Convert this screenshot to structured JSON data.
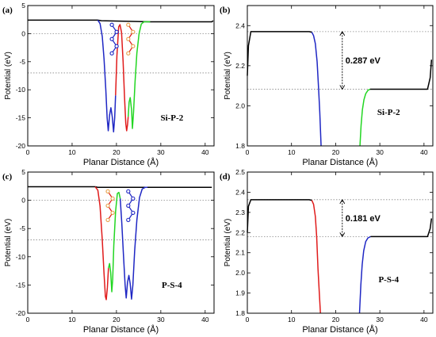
{
  "colors": {
    "black": "#000000",
    "blue": "#1f27c4",
    "red": "#e01b1b",
    "green": "#22d622",
    "orange": "#e8a04a"
  },
  "chart_data": [
    {
      "id": "a",
      "type": "line",
      "panel_label": "(a)",
      "annotation": "Si-P-2",
      "xlabel": "Planar Distance (Å)",
      "ylabel": "Potential (eV)",
      "xlim": [
        0,
        42
      ],
      "ylim": [
        -20,
        5
      ],
      "xticks": [
        0,
        10,
        20,
        30,
        40
      ],
      "yticks": [
        5,
        0,
        -5,
        -10,
        -15,
        -20
      ],
      "dotted_hlines": [
        0,
        -7.0
      ],
      "x_icon_guides": [
        19.5,
        23.2
      ],
      "series": [
        {
          "color": "#000000",
          "points": [
            [
              0,
              2.4
            ],
            [
              15.8,
              2.4
            ],
            [
              16.6,
              2.3
            ],
            [
              27.6,
              2.1
            ],
            [
              41.5,
              2.1
            ],
            [
              41.8,
              2.3
            ]
          ]
        },
        {
          "color": "#1f27c4",
          "points": [
            [
              15.8,
              2.4
            ],
            [
              16.3,
              1.8
            ],
            [
              16.8,
              -0.5
            ],
            [
              17.2,
              -4.5
            ],
            [
              17.6,
              -10
            ],
            [
              17.9,
              -15
            ],
            [
              18.15,
              -17.3
            ],
            [
              18.45,
              -14.5
            ],
            [
              18.75,
              -13.2
            ],
            [
              19.05,
              -14.8
            ],
            [
              19.35,
              -17.5
            ],
            [
              19.6,
              -15
            ],
            [
              19.8,
              -11
            ]
          ]
        },
        {
          "color": "#e01b1b",
          "points": [
            [
              19.8,
              -11
            ],
            [
              20.1,
              -4
            ],
            [
              20.5,
              1.2
            ],
            [
              20.8,
              1.6
            ],
            [
              21.15,
              0.2
            ],
            [
              21.5,
              -5
            ],
            [
              21.8,
              -11
            ],
            [
              22.1,
              -16
            ],
            [
              22.3,
              -17.3
            ],
            [
              22.5,
              -16.2
            ],
            [
              22.65,
              -14.8
            ]
          ]
        },
        {
          "color": "#22d622",
          "points": [
            [
              22.65,
              -14.8
            ],
            [
              22.85,
              -12.2
            ],
            [
              23.1,
              -11.4
            ],
            [
              23.4,
              -13.5
            ],
            [
              23.6,
              -16.9
            ],
            [
              23.85,
              -14
            ],
            [
              24.2,
              -8.5
            ],
            [
              24.6,
              -3.5
            ],
            [
              25.1,
              0
            ],
            [
              25.6,
              1.7
            ],
            [
              26.2,
              2.1
            ],
            [
              27.6,
              2.1
            ]
          ]
        }
      ]
    },
    {
      "id": "b",
      "type": "line",
      "panel_label": "(b)",
      "annotation": "Si-P-2",
      "delta_label": "0.287 eV",
      "xlabel": "Planar Distance (Å)",
      "ylabel": "Potential (eV)",
      "xlim": [
        0,
        42
      ],
      "ylim": [
        1.8,
        2.5
      ],
      "xticks": [
        0,
        10,
        20,
        30,
        40
      ],
      "yticks": [
        1.8,
        2.0,
        2.2,
        2.4
      ],
      "ytick_labels": [
        "1.8",
        "2.0",
        "2.2",
        "2.4"
      ],
      "dotted_hlines": [
        2.37,
        2.083
      ],
      "arrow_x": 21.5,
      "series": [
        {
          "color": "#000000",
          "points": [
            [
              0,
              2.15
            ],
            [
              0.25,
              2.3
            ],
            [
              0.8,
              2.37
            ],
            [
              14,
              2.37
            ],
            [
              14.6,
              2.367
            ]
          ]
        },
        {
          "color": "#1f27c4",
          "points": [
            [
              14.6,
              2.367
            ],
            [
              15.0,
              2.35
            ],
            [
              15.4,
              2.31
            ],
            [
              15.8,
              2.22
            ],
            [
              16.1,
              2.1
            ],
            [
              16.4,
              1.97
            ],
            [
              16.7,
              1.8
            ]
          ]
        },
        {
          "color": "#22d622",
          "points": [
            [
              25.5,
              1.8
            ],
            [
              25.75,
              1.9
            ],
            [
              26.05,
              1.98
            ],
            [
              26.4,
              2.03
            ],
            [
              26.8,
              2.06
            ],
            [
              27.3,
              2.077
            ],
            [
              27.8,
              2.083
            ]
          ]
        },
        {
          "color": "#000000",
          "points": [
            [
              27.8,
              2.083
            ],
            [
              40.8,
              2.083
            ],
            [
              41.4,
              2.14
            ],
            [
              41.7,
              2.23
            ]
          ]
        }
      ]
    },
    {
      "id": "c",
      "type": "line",
      "panel_label": "(c)",
      "annotation": "P-S-4",
      "xlabel": "Planar Distance (Å)",
      "ylabel": "Potential (eV)",
      "xlim": [
        0,
        42
      ],
      "ylim": [
        -20,
        5
      ],
      "xticks": [
        0,
        10,
        20,
        30,
        40
      ],
      "yticks": [
        5,
        0,
        -5,
        -10,
        -15,
        -20
      ],
      "dotted_hlines": [
        0,
        -7.0
      ],
      "x_icon_guides": [
        18.6,
        23.2
      ],
      "series": [
        {
          "color": "#000000",
          "points": [
            [
              0,
              2.4
            ],
            [
              15.2,
              2.4
            ],
            [
              15.8,
              2.3
            ],
            [
              27.0,
              2.3
            ],
            [
              41.5,
              2.3
            ]
          ]
        },
        {
          "color": "#e01b1b",
          "points": [
            [
              15.2,
              2.4
            ],
            [
              15.8,
              1.8
            ],
            [
              16.3,
              -1
            ],
            [
              16.8,
              -7
            ],
            [
              17.2,
              -13
            ],
            [
              17.5,
              -17
            ],
            [
              17.7,
              -17.6
            ],
            [
              17.95,
              -15.5
            ],
            [
              18.2,
              -12
            ]
          ]
        },
        {
          "color": "#22d622",
          "points": [
            [
              18.2,
              -12
            ],
            [
              18.45,
              -11.2
            ],
            [
              18.7,
              -12.8
            ],
            [
              18.95,
              -16.2
            ],
            [
              19.15,
              -14
            ],
            [
              19.4,
              -8
            ],
            [
              19.8,
              -2
            ],
            [
              20.2,
              1.2
            ],
            [
              20.55,
              1.4
            ],
            [
              20.85,
              0.3
            ]
          ]
        },
        {
          "color": "#1f27c4",
          "points": [
            [
              20.85,
              0.3
            ],
            [
              21.2,
              -4
            ],
            [
              21.6,
              -10
            ],
            [
              21.95,
              -15
            ],
            [
              22.2,
              -17.3
            ],
            [
              22.5,
              -14.5
            ],
            [
              22.8,
              -13.3
            ],
            [
              23.1,
              -14.8
            ],
            [
              23.4,
              -17.5
            ],
            [
              23.7,
              -15
            ],
            [
              24.1,
              -9
            ],
            [
              24.6,
              -3.5
            ],
            [
              25.2,
              0.5
            ],
            [
              25.8,
              2.0
            ],
            [
              26.5,
              2.3
            ],
            [
              27.0,
              2.3
            ]
          ]
        }
      ]
    },
    {
      "id": "d",
      "type": "line",
      "panel_label": "(d)",
      "annotation": "P-S-4",
      "delta_label": "0.181 eV",
      "xlabel": "Planar Distance (Å)",
      "ylabel": "Potential (eV)",
      "xlim": [
        0,
        42
      ],
      "ylim": [
        1.8,
        2.5
      ],
      "xticks": [
        0,
        10,
        20,
        30,
        40
      ],
      "yticks": [
        1.8,
        1.9,
        2.0,
        2.1,
        2.2,
        2.3,
        2.4,
        2.5
      ],
      "ytick_labels": [
        "1.8",
        "1.9",
        "2.0",
        "2.1",
        "2.2",
        "2.3",
        "2.4",
        "2.5"
      ],
      "dotted_hlines": [
        2.363,
        2.18
      ],
      "arrow_x": 21.5,
      "series": [
        {
          "color": "#000000",
          "points": [
            [
              0,
              2.2
            ],
            [
              0.25,
              2.33
            ],
            [
              0.8,
              2.363
            ],
            [
              14,
              2.363
            ],
            [
              14.6,
              2.36
            ]
          ]
        },
        {
          "color": "#e01b1b",
          "points": [
            [
              14.6,
              2.36
            ],
            [
              15.0,
              2.34
            ],
            [
              15.4,
              2.28
            ],
            [
              15.7,
              2.18
            ],
            [
              16.0,
              2.02
            ],
            [
              16.3,
              1.9
            ],
            [
              16.55,
              1.8
            ]
          ]
        },
        {
          "color": "#1f27c4",
          "points": [
            [
              25.4,
              1.8
            ],
            [
              25.7,
              1.94
            ],
            [
              26.0,
              2.04
            ],
            [
              26.35,
              2.11
            ],
            [
              26.8,
              2.155
            ],
            [
              27.3,
              2.173
            ],
            [
              27.9,
              2.18
            ]
          ]
        },
        {
          "color": "#000000",
          "points": [
            [
              27.9,
              2.18
            ],
            [
              40.8,
              2.18
            ],
            [
              41.4,
              2.22
            ],
            [
              41.7,
              2.27
            ]
          ]
        }
      ]
    }
  ]
}
